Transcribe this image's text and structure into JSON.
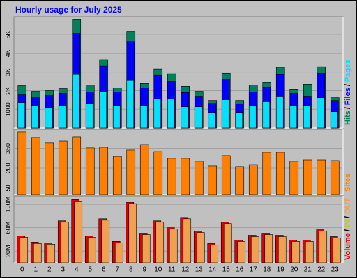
{
  "title": "Hourly usage for July 2025",
  "chart_data": [
    {
      "type": "bar",
      "legend_separator": "/",
      "ylim": [
        0,
        5900
      ],
      "yticks": [
        {
          "value": 1000,
          "label": "1000"
        },
        {
          "value": 2000,
          "label": "2K"
        },
        {
          "value": 3000,
          "label": "3K"
        },
        {
          "value": 4000,
          "label": "4K"
        },
        {
          "value": 5000,
          "label": "5K"
        }
      ],
      "grid": true,
      "series": [
        {
          "name": "Hits",
          "color": "#00805c",
          "values": [
            2260,
            1960,
            2000,
            2110,
            5810,
            2300,
            3660,
            2150,
            5170,
            2380,
            3170,
            2910,
            2230,
            1960,
            1470,
            2940,
            1470,
            2300,
            2450,
            3250,
            2080,
            2340,
            3280,
            1620
          ]
        },
        {
          "name": "Files",
          "color": "#0000ff",
          "values": [
            1810,
            1660,
            1770,
            1850,
            5090,
            1920,
            3320,
            1920,
            4640,
            2150,
            2830,
            2490,
            1890,
            1700,
            1320,
            2640,
            1280,
            1920,
            2190,
            2870,
            1850,
            1700,
            2940,
            1470
          ]
        },
        {
          "name": "Pages",
          "color": "#00e0ff",
          "values": [
            1360,
            1170,
            1090,
            1210,
            2870,
            1320,
            1920,
            1210,
            2570,
            1210,
            1550,
            1550,
            1130,
            1130,
            830,
            1510,
            830,
            1210,
            1400,
            1700,
            1210,
            1210,
            1620,
            870
          ]
        }
      ]
    },
    {
      "type": "bar",
      "ylim": [
        0,
        484
      ],
      "yticks": [
        50,
        200,
        350
      ],
      "grid": true,
      "series": [
        {
          "name": "Sites",
          "color": "#ff8000",
          "values": [
            474,
            432,
            390,
            405,
            437,
            353,
            358,
            289,
            337,
            379,
            326,
            274,
            274,
            253,
            216,
            295,
            211,
            226,
            321,
            321,
            253,
            263,
            263,
            258
          ]
        }
      ]
    },
    {
      "type": "bar",
      "legend_separator": "/",
      "ylim": [
        0,
        112
      ],
      "yticks": [
        {
          "value": 20,
          "label": "20M"
        },
        {
          "value": 60,
          "label": "60M"
        },
        {
          "value": 100,
          "label": "100M"
        }
      ],
      "grid": true,
      "categories": [
        "0",
        "1",
        "2",
        "3",
        "4",
        "5",
        "6",
        "7",
        "8",
        "9",
        "10",
        "11",
        "12",
        "13",
        "14",
        "15",
        "16",
        "17",
        "18",
        "19",
        "20",
        "21",
        "22",
        "23"
      ],
      "series": [
        {
          "name": "Volume",
          "color": "#e00000",
          "values": [
            45.9,
            35.3,
            34.1,
            71.8,
            108,
            45.9,
            75.3,
            36.5,
            103.5,
            50.6,
            71.8,
            60,
            77.6,
            54.1,
            32.9,
            69.4,
            38.8,
            47,
            50.6,
            47,
            38.8,
            38.8,
            56.5,
            44.7
          ]
        },
        {
          "name": "IN",
          "color": "#c0c040",
          "values": [
            null,
            null,
            null,
            null,
            null,
            null,
            null,
            null,
            null,
            null,
            null,
            null,
            null,
            null,
            null,
            null,
            null,
            null,
            null,
            null,
            null,
            null,
            null,
            null
          ]
        },
        {
          "name": "OUT",
          "color": "#f0a050",
          "values": [
            43.5,
            33,
            31.8,
            69.4,
            105.6,
            43.5,
            72.9,
            34.1,
            101.1,
            48.2,
            69.4,
            57.6,
            75.3,
            51.8,
            30.6,
            67.1,
            36.5,
            44.7,
            48.2,
            44.7,
            36.5,
            36.5,
            54.1,
            42.4
          ]
        }
      ]
    }
  ]
}
